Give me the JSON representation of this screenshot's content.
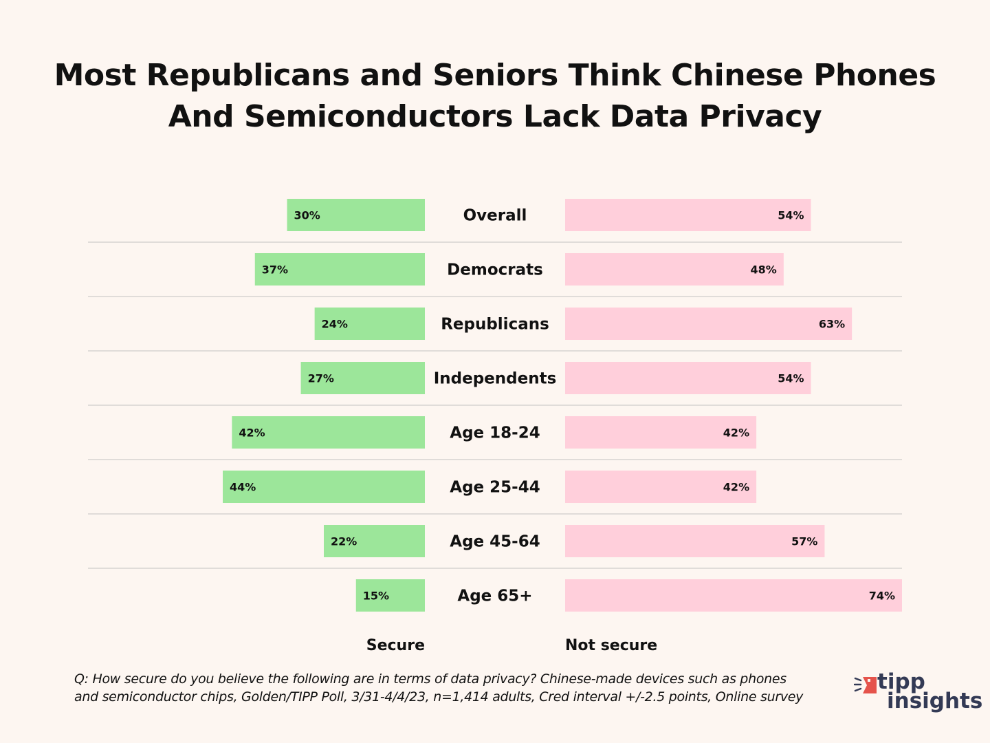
{
  "chart_data": {
    "type": "bar",
    "orientation": "horizontal-diverging",
    "title": "Most Republicans and Seniors Think Chinese Phones And Semiconductors Lack Data Privacy",
    "title_lines": [
      "Most Republicans and Seniors Think Chinese Phones",
      "And Semiconductors Lack Data Privacy"
    ],
    "categories": [
      "Overall",
      "Democrats",
      "Republicans",
      "Independents",
      "Age 18-24",
      "Age 25-44",
      "Age 45-64",
      "Age 65+"
    ],
    "series": [
      {
        "name": "Secure",
        "color": "#9ce69a",
        "values": [
          30,
          37,
          24,
          27,
          42,
          44,
          22,
          15
        ],
        "labels": [
          "30%",
          "37%",
          "24%",
          "27%",
          "42%",
          "44%",
          "22%",
          "15%"
        ]
      },
      {
        "name": "Not secure",
        "color": "#ffcfdb",
        "values": [
          54,
          48,
          63,
          54,
          42,
          42,
          57,
          74
        ],
        "labels": [
          "54%",
          "48%",
          "63%",
          "54%",
          "42%",
          "42%",
          "57%",
          "74%"
        ]
      }
    ],
    "unit": "%",
    "xlim": [
      0,
      74
    ],
    "grid": false,
    "row_separators": true
  },
  "footnote": {
    "lines": [
      "Q: How secure do you believe the following are in terms of data privacy? Chinese-made devices such as phones",
      "and semiconductor chips, Golden/TIPP Poll, 3/31-4/4/23, n=1,414 adults, Cred interval +/-2.5 points, Online survey"
    ]
  },
  "logo": {
    "line1": "tipp",
    "line2": "insights",
    "accent_color": "#e5534b",
    "text_color": "#333a55"
  },
  "colors": {
    "background": "#fdf6f1",
    "separator": "#d6d3d1"
  }
}
